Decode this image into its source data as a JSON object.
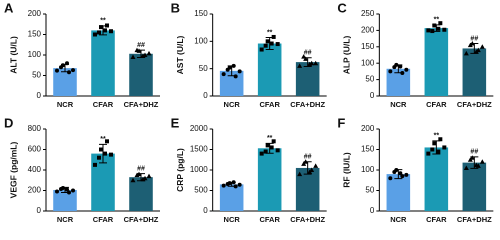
{
  "chart_data": [
    {
      "type": "bar",
      "panel": "A",
      "ylabel": "ALT (U/L)",
      "categories": [
        "NCR",
        "CFAR",
        "CFA+DHZ"
      ],
      "values": [
        68,
        160,
        103
      ],
      "errors": [
        9,
        11,
        9
      ],
      "colors": [
        "#5aa0e6",
        "#1b9ab4",
        "#1d5f74"
      ],
      "annotations": [
        null,
        "**",
        "##"
      ],
      "ylim": [
        0,
        200
      ],
      "yticks": [
        0,
        50,
        100,
        150,
        200
      ],
      "points": [
        [
          62,
          75,
          58,
          70,
          80,
          63
        ],
        [
          150,
          168,
          172,
          155,
          160,
          158
        ],
        [
          95,
          110,
          100,
          112,
          98,
          104
        ]
      ]
    },
    {
      "type": "bar",
      "panel": "B",
      "ylabel": "AST (U/L)",
      "categories": [
        "NCR",
        "CFAR",
        "CFA+DHZ"
      ],
      "values": [
        46,
        96,
        62
      ],
      "errors": [
        9,
        11,
        8
      ],
      "colors": [
        "#5aa0e6",
        "#1b9ab4",
        "#1d5f74"
      ],
      "annotations": [
        null,
        "**",
        "##"
      ],
      "ylim": [
        0,
        150
      ],
      "yticks": [
        0,
        50,
        100,
        150
      ],
      "points": [
        [
          40,
          52,
          36,
          48,
          55,
          45
        ],
        [
          85,
          100,
          108,
          92,
          96,
          95
        ],
        [
          55,
          68,
          60,
          72,
          58,
          60
        ]
      ]
    },
    {
      "type": "bar",
      "panel": "C",
      "ylabel": "ALP (U/L)",
      "categories": [
        "NCR",
        "CFAR",
        "CFA+DHZ"
      ],
      "values": [
        83,
        207,
        145
      ],
      "errors": [
        12,
        10,
        15
      ],
      "colors": [
        "#5aa0e6",
        "#1b9ab4",
        "#1d5f74"
      ],
      "annotations": [
        null,
        "**",
        "##"
      ],
      "ylim": [
        0,
        250
      ],
      "yticks": [
        0,
        50,
        100,
        150,
        200,
        250
      ],
      "points": [
        [
          75,
          95,
          70,
          88,
          90,
          80
        ],
        [
          200,
          215,
          222,
          198,
          205,
          202
        ],
        [
          130,
          160,
          140,
          155,
          135,
          150
        ]
      ]
    },
    {
      "type": "bar",
      "panel": "D",
      "ylabel": "VEGF (pg/mL)",
      "categories": [
        "NCR",
        "CFAR",
        "CFA+DHZ"
      ],
      "values": [
        205,
        560,
        330
      ],
      "errors": [
        25,
        90,
        35
      ],
      "colors": [
        "#5aa0e6",
        "#1b9ab4",
        "#1d5f74"
      ],
      "annotations": [
        null,
        "**",
        "##"
      ],
      "ylim": [
        0,
        800
      ],
      "yticks": [
        0,
        200,
        400,
        600,
        800
      ],
      "points": [
        [
          190,
          225,
          180,
          215,
          210,
          200
        ],
        [
          450,
          600,
          680,
          520,
          560,
          550
        ],
        [
          300,
          360,
          320,
          350,
          310,
          340
        ]
      ]
    },
    {
      "type": "bar",
      "panel": "E",
      "ylabel": "CRP (pg/L)",
      "categories": [
        "NCR",
        "CFAR",
        "CFA+DHZ"
      ],
      "values": [
        650,
        1530,
        1050
      ],
      "errors": [
        45,
        120,
        150
      ],
      "colors": [
        "#5aa0e6",
        "#1b9ab4",
        "#1d5f74"
      ],
      "annotations": [
        null,
        "**",
        "##"
      ],
      "ylim": [
        0,
        2000
      ],
      "yticks": [
        0,
        500,
        1000,
        1500,
        2000
      ],
      "points": [
        [
          620,
          680,
          600,
          660,
          700,
          640
        ],
        [
          1400,
          1600,
          1700,
          1450,
          1550,
          1480
        ],
        [
          900,
          1200,
          1000,
          1150,
          950,
          1100
        ]
      ]
    },
    {
      "type": "bar",
      "panel": "F",
      "ylabel": "RF (IU/L)",
      "categories": [
        "NCR",
        "CFAR",
        "CFA+DHZ"
      ],
      "values": [
        90,
        155,
        118
      ],
      "errors": [
        11,
        16,
        14
      ],
      "colors": [
        "#5aa0e6",
        "#1b9ab4",
        "#1d5f74"
      ],
      "annotations": [
        null,
        "**",
        "##"
      ],
      "ylim": [
        0,
        200
      ],
      "yticks": [
        0,
        50,
        100,
        150,
        200
      ],
      "points": [
        [
          80,
          100,
          85,
          95,
          92,
          88
        ],
        [
          140,
          165,
          175,
          150,
          145,
          155
        ],
        [
          105,
          130,
          110,
          125,
          112,
          120
        ]
      ]
    }
  ]
}
